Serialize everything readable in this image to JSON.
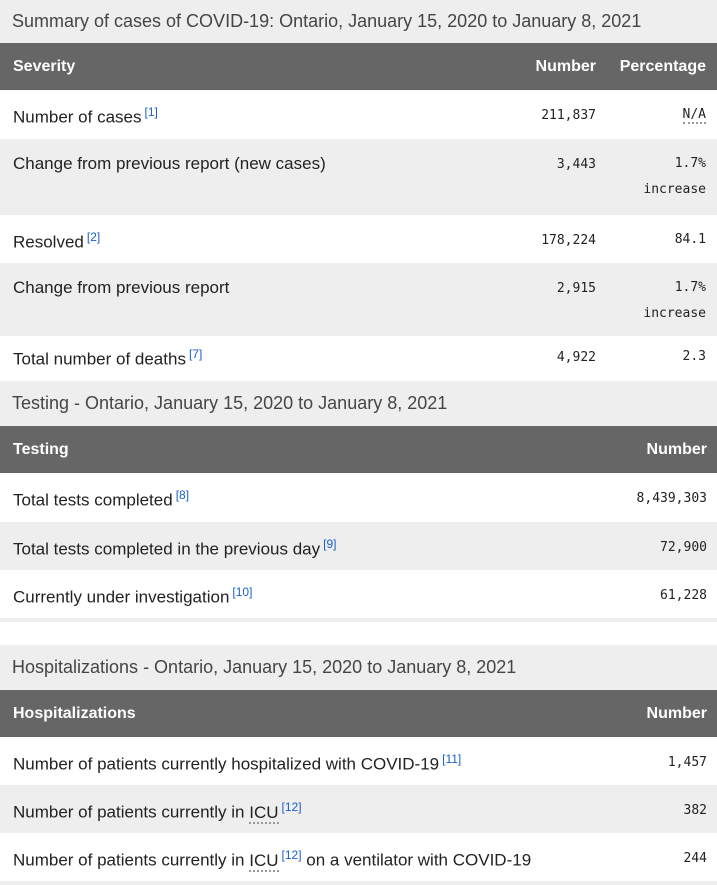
{
  "summary": {
    "title": "Summary of cases of COVID-19: Ontario, January 15, 2020 to January 8, 2021",
    "headers": [
      "Severity",
      "Number",
      "Percentage"
    ],
    "rows": [
      {
        "label": "Number of cases",
        "ref": "[1]",
        "number": "211,837",
        "percentage": "N/A",
        "note": ""
      },
      {
        "label": "Change from previous report (new cases)",
        "ref": "",
        "number": "3,443",
        "percentage": "1.7%",
        "note": "increase"
      },
      {
        "label": "Resolved",
        "ref": "[2]",
        "number": "178,224",
        "percentage": "84.1",
        "note": ""
      },
      {
        "label": "Change from previous report",
        "ref": "",
        "number": "2,915",
        "percentage": "1.7%",
        "note": "increase"
      },
      {
        "label": "Total number of deaths",
        "ref": "[7]",
        "number": "4,922",
        "percentage": "2.3",
        "note": ""
      }
    ]
  },
  "testing": {
    "title": "Testing - Ontario, January 15, 2020 to January 8, 2021",
    "headers": [
      "Testing",
      "Number"
    ],
    "rows": [
      {
        "label": "Total tests completed",
        "ref": "[8]",
        "number": "8,439,303"
      },
      {
        "label": "Total tests completed in the previous day",
        "ref": "[9]",
        "number": "72,900"
      },
      {
        "label": "Currently under investigation",
        "ref": "[10]",
        "number": "61,228"
      }
    ]
  },
  "hosp": {
    "title": "Hospitalizations - Ontario, January 15, 2020 to January 8, 2021",
    "headers": [
      "Hospitalizations",
      "Number"
    ],
    "rows": [
      {
        "label": "Number of patients currently hospitalized with COVID-19",
        "ref": "[11]",
        "number": "1,457"
      },
      {
        "label": "Number of patients currently in",
        "abbr": "ICU",
        "ref": "[12]",
        "number": "382"
      },
      {
        "label": "Number of patients currently in",
        "abbr": "ICU",
        "ref": "[12]",
        "suffix": "on a ventilator with COVID-19",
        "number": "244"
      }
    ]
  }
}
